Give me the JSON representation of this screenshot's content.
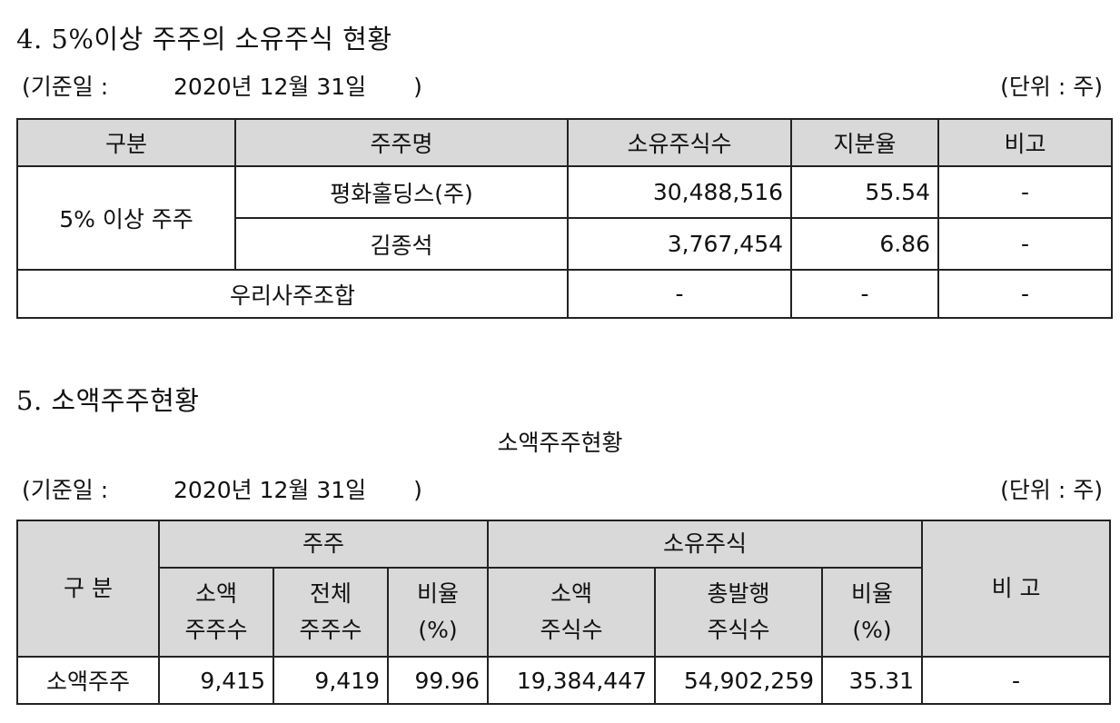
{
  "section4": {
    "title": "4. 5%이상 주주의 소유주식 현황",
    "basis_label": "(기준일 :",
    "basis_date": "2020년 12월 31일",
    "basis_close": ")",
    "unit": "(단위 : 주)",
    "headers": [
      "구분",
      "주주명",
      "소유주식수",
      "지분율",
      "비고"
    ],
    "group_label": "5% 이상 주주",
    "rows": [
      {
        "name": "평화홀딩스(주)",
        "shares": "30,488,516",
        "ratio": "55.54",
        "note": "-"
      },
      {
        "name": "김종석",
        "shares": "3,767,454",
        "ratio": "6.86",
        "note": "-"
      }
    ],
    "union_row": {
      "label": "우리사주조합",
      "shares": "-",
      "ratio": "-",
      "note": "-"
    }
  },
  "section5": {
    "title": "5. 소액주주현황",
    "caption": "소액주주현황",
    "basis_label": "(기준일 :",
    "basis_date": "2020년 12월 31일",
    "basis_close": ")",
    "unit": "(단위 : 주)",
    "headers": {
      "category": "구 분",
      "holders_group": "주주",
      "shares_group": "소유주식",
      "note": "비 고",
      "minor_holders_1": "소액",
      "minor_holders_2": "주주수",
      "total_holders_1": "전체",
      "total_holders_2": "주주수",
      "holders_ratio_1": "비율",
      "holders_ratio_2": "(%)",
      "minor_shares_1": "소액",
      "minor_shares_2": "주식수",
      "issued_shares_1": "총발행",
      "issued_shares_2": "주식수",
      "shares_ratio_1": "비율",
      "shares_ratio_2": "(%)"
    },
    "row": {
      "category": "소액주주",
      "minor_holders": "9,415",
      "total_holders": "9,419",
      "holders_ratio": "99.96",
      "minor_shares": "19,384,447",
      "issued_shares": "54,902,259",
      "shares_ratio": "35.31",
      "note": "-"
    }
  }
}
